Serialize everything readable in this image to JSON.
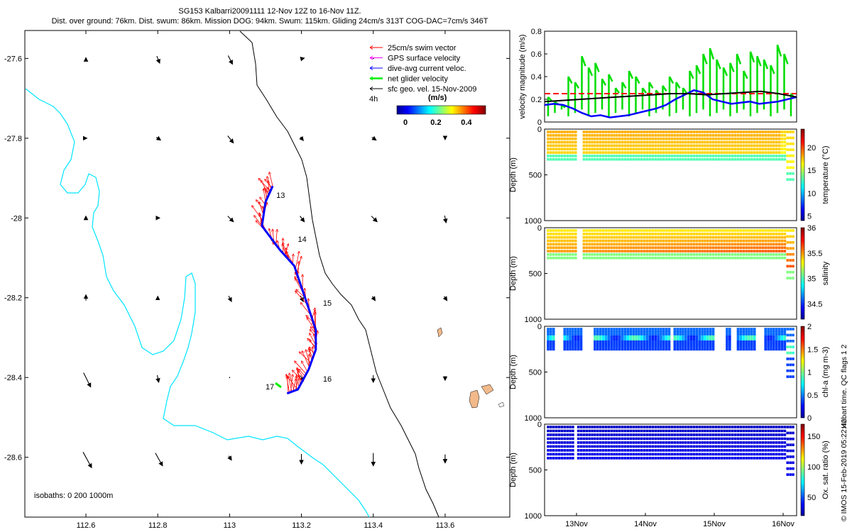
{
  "header": {
    "line1": "SG153 Kalbarri20091111 12-Nov 12Z to 16-Nov 11Z.",
    "line2": "Dist. over ground: 76km. Dist. swum: 86km. Mission DOG: 94km. Swum: 115km. Gliding 24cm/s 313T COG-DAC=7cm/s 346T"
  },
  "chart_data": [
    {
      "type": "map",
      "name": "glider track map",
      "xticks": [
        "112.6",
        "112.8",
        "113",
        "113.2",
        "113.4",
        "113.6"
      ],
      "yticks": [
        "-27.6",
        "-27.8",
        "-28",
        "-28.2",
        "-28.4",
        "-28.6"
      ],
      "xlim": [
        112.43,
        113.78
      ],
      "ylim": [
        -28.75,
        -27.53
      ],
      "track": [
        [
          113.12,
          -27.92
        ],
        [
          113.1,
          -27.96
        ],
        [
          113.09,
          -28.02
        ],
        [
          113.14,
          -28.08
        ],
        [
          113.18,
          -28.12
        ],
        [
          113.21,
          -28.2
        ],
        [
          113.24,
          -28.28
        ],
        [
          113.24,
          -28.33
        ],
        [
          113.22,
          -28.38
        ],
        [
          113.19,
          -28.43
        ],
        [
          113.16,
          -28.44
        ]
      ],
      "day_labels": [
        {
          "text": "13",
          "lon": 113.13,
          "lat": -27.95
        },
        {
          "text": "14",
          "lon": 113.19,
          "lat": -28.06
        },
        {
          "text": "15",
          "lon": 113.26,
          "lat": -28.22
        },
        {
          "text": "16",
          "lon": 113.26,
          "lat": -28.41
        },
        {
          "text": "17",
          "lon": 113.1,
          "lat": -28.43
        }
      ],
      "legend": [
        {
          "label": "25cm/s swim vector",
          "color": "#ff0000"
        },
        {
          "label": "GPS surface velocity",
          "color": "#ff00ff"
        },
        {
          "label": "dive-avg current veloc.",
          "color": "#0000ff"
        },
        {
          "label": "net glider velocity",
          "color": "#00ee00"
        },
        {
          "label": "sfc geo. vel. 15-Nov-2009",
          "color": "#000000"
        }
      ],
      "colorbar": {
        "title": "(m/s)",
        "ticks": [
          "0",
          "0.2",
          "0.4"
        ],
        "note": "4h"
      },
      "isobaths_label": "isobaths: 0   200  1000m"
    },
    {
      "type": "line",
      "name": "velocity magnitude",
      "ylabel": "velocity magnitude (m/s)",
      "ylim": [
        0,
        0.8
      ],
      "yticks": [
        "0",
        "0.2",
        "0.4",
        "0.6",
        "0.8"
      ],
      "series": [
        {
          "name": "net glider velocity (green bars)",
          "color": "#00dd00",
          "values": [
            0.22,
            0.18,
            0.15,
            0.4,
            0.35,
            0.58,
            0.48,
            0.52,
            0.38,
            0.42,
            0.3,
            0.35,
            0.45,
            0.4,
            0.3,
            0.35,
            0.28,
            0.32,
            0.4,
            0.35,
            0.3,
            0.45,
            0.5,
            0.6,
            0.65,
            0.55,
            0.48,
            0.52,
            0.6,
            0.45,
            0.62,
            0.58,
            0.55,
            0.5,
            0.68,
            0.6,
            0.25
          ]
        },
        {
          "name": "dive-avg current (blue)",
          "color": "#0000ff",
          "values": [
            0.15,
            0.16,
            0.15,
            0.12,
            0.08,
            0.05,
            0.06,
            0.04,
            0.05,
            0.06,
            0.08,
            0.1,
            0.12,
            0.15,
            0.2,
            0.24,
            0.28,
            0.26,
            0.2,
            0.18,
            0.16,
            0.17,
            0.18,
            0.16,
            0.17,
            0.18,
            0.2,
            0.22
          ]
        },
        {
          "name": "sfc geo. vel. (black)",
          "color": "#000000",
          "values": [
            0.18,
            0.19,
            0.2,
            0.21,
            0.22,
            0.23,
            0.24,
            0.25,
            0.25,
            0.24,
            0.25,
            0.26,
            0.27,
            0.25,
            0.22
          ]
        },
        {
          "name": "mean swim (red dashed)",
          "color": "#ff0000",
          "values": [
            0.25,
            0.25,
            0.25,
            0.25
          ]
        }
      ]
    },
    {
      "type": "heatmap",
      "name": "temperature section",
      "ylabel": "Depth (m)",
      "yticks": [
        "0",
        "500",
        "1000"
      ],
      "ylim": [
        1000,
        0
      ],
      "colorbar_label": "temperature (°C)",
      "colorbar_ticks": [
        "5",
        "10",
        "15",
        "20"
      ],
      "crange": [
        4,
        24
      ]
    },
    {
      "type": "heatmap",
      "name": "salinity section",
      "ylabel": "Depth (m)",
      "yticks": [
        "0",
        "500",
        "1000"
      ],
      "ylim": [
        1000,
        0
      ],
      "colorbar_label": "salinity",
      "colorbar_ticks": [
        "34.5",
        "35",
        "35.5",
        "36"
      ],
      "crange": [
        34.2,
        36
      ]
    },
    {
      "type": "heatmap",
      "name": "chlorophyll section",
      "ylabel": "Depth (m)",
      "yticks": [
        "0",
        "500",
        "1000"
      ],
      "ylim": [
        1000,
        0
      ],
      "colorbar_label": "chl-a (mg m-3)",
      "colorbar_ticks": [
        "0",
        "0.5",
        "1",
        "1.5",
        "2"
      ],
      "crange": [
        0,
        2
      ]
    },
    {
      "type": "heatmap",
      "name": "oxygen section",
      "ylabel": "Depth (m)",
      "yticks": [
        "0",
        "500",
        "1000"
      ],
      "ylim": [
        1000,
        0
      ],
      "colorbar_label": "Ox. sat. ratio (%)",
      "colorbar_ticks": [
        "50",
        "100",
        "150"
      ],
      "crange": [
        20,
        170
      ],
      "xticks": [
        "13Nov",
        "14Nov",
        "15Nov",
        "16Nov"
      ]
    }
  ],
  "footer": {
    "qc_text": "Hobart time. QC flags 1  2",
    "credit": "© IMOS 15-Feb-2019 05:22:42"
  }
}
